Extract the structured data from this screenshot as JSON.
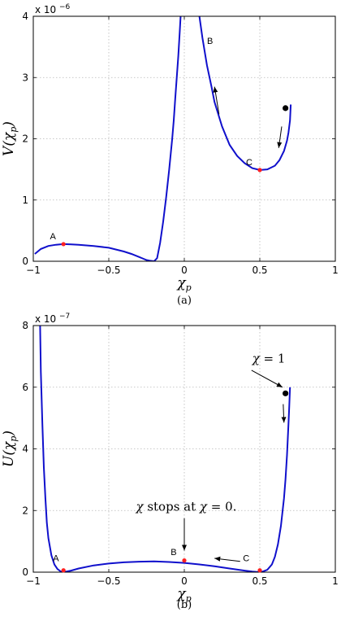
{
  "chart_data": [
    {
      "type": "line",
      "panel": "a",
      "caption": "(a)",
      "xlabel": "χp",
      "ylabel": "V(χp)",
      "exponent_label": "x 10",
      "exponent_power": "−6",
      "xlim": [
        -1,
        1
      ],
      "ylim": [
        0,
        4
      ],
      "xticks": [
        -1,
        -0.5,
        0,
        0.5,
        1
      ],
      "xtick_labels": [
        "−1",
        "−0.5",
        "0",
        "0.5",
        "1"
      ],
      "yticks": [
        0,
        1,
        2,
        3,
        4
      ],
      "ytick_labels": [
        "0",
        "1",
        "2",
        "3",
        "4"
      ],
      "grid": true,
      "line_color": "#1010cc",
      "series": [
        {
          "segment": "left",
          "x": [
            -0.99,
            -0.95,
            -0.9,
            -0.85,
            -0.8,
            -0.75,
            -0.7,
            -0.6,
            -0.5,
            -0.4,
            -0.35,
            -0.3,
            -0.27,
            -0.25,
            -0.23,
            -0.2,
            -0.18,
            -0.16,
            -0.14,
            -0.12,
            -0.1,
            -0.08,
            -0.07,
            -0.06,
            -0.05,
            -0.04,
            -0.03,
            -0.02,
            -0.01
          ],
          "y": [
            0.12,
            0.2,
            0.25,
            0.27,
            0.28,
            0.275,
            0.27,
            0.25,
            0.22,
            0.16,
            0.12,
            0.07,
            0.04,
            0.02,
            0.01,
            0.0,
            0.05,
            0.3,
            0.65,
            1.05,
            1.5,
            2.0,
            2.3,
            2.65,
            3.0,
            3.35,
            3.75,
            4.2,
            4.7
          ]
        },
        {
          "segment": "right",
          "x": [
            0.1,
            0.12,
            0.15,
            0.18,
            0.2,
            0.25,
            0.3,
            0.35,
            0.4,
            0.45,
            0.5,
            0.55,
            0.6,
            0.63,
            0.66,
            0.68,
            0.69,
            0.7,
            0.705
          ],
          "y": [
            4.0,
            3.65,
            3.2,
            2.85,
            2.6,
            2.2,
            1.9,
            1.72,
            1.6,
            1.52,
            1.49,
            1.5,
            1.56,
            1.65,
            1.8,
            1.97,
            2.1,
            2.3,
            2.56
          ]
        }
      ],
      "points": [
        {
          "label": "A",
          "x": -0.8,
          "y": 0.28,
          "color": "#ff2020"
        },
        {
          "label": "C",
          "x": 0.5,
          "y": 1.49,
          "color": "#ff2020"
        },
        {
          "label": "",
          "x": 0.67,
          "y": 2.5,
          "color": "#000000"
        }
      ],
      "labels": [
        {
          "text": "A",
          "x": -0.87,
          "y": 0.36
        },
        {
          "text": "B",
          "x": 0.17,
          "y": 3.55
        },
        {
          "text": "C",
          "x": 0.43,
          "y": 1.57
        }
      ],
      "arrows": [
        {
          "from": [
            0.23,
            2.4
          ],
          "to": [
            0.2,
            2.85
          ]
        },
        {
          "from": [
            0.645,
            2.2
          ],
          "to": [
            0.625,
            1.85
          ]
        }
      ]
    },
    {
      "type": "line",
      "panel": "b",
      "caption": "(b)",
      "xlabel": "χp",
      "ylabel": "U(χp)",
      "exponent_label": "x 10",
      "exponent_power": "−7",
      "xlim": [
        -1,
        1
      ],
      "ylim": [
        0,
        8
      ],
      "xticks": [
        -1,
        -0.5,
        0,
        0.5,
        1
      ],
      "xtick_labels": [
        "−1",
        "−0.5",
        "0",
        "0.5",
        "1"
      ],
      "yticks": [
        0,
        2,
        4,
        6,
        8
      ],
      "ytick_labels": [
        "0",
        "2",
        "4",
        "6",
        "8"
      ],
      "grid": true,
      "line_color": "#1010cc",
      "series": [
        {
          "segment": "main",
          "x": [
            -0.955,
            -0.95,
            -0.94,
            -0.93,
            -0.92,
            -0.91,
            -0.9,
            -0.88,
            -0.86,
            -0.84,
            -0.82,
            -0.8,
            -0.78,
            -0.75,
            -0.7,
            -0.6,
            -0.5,
            -0.4,
            -0.3,
            -0.2,
            -0.1,
            0.0,
            0.1,
            0.2,
            0.3,
            0.4,
            0.45,
            0.5,
            0.52,
            0.55,
            0.58,
            0.6,
            0.62,
            0.64,
            0.66,
            0.67,
            0.68,
            0.69,
            0.695,
            0.7
          ],
          "y": [
            8.0,
            6.5,
            4.8,
            3.4,
            2.4,
            1.6,
            1.1,
            0.55,
            0.25,
            0.1,
            0.03,
            0.0,
            0.02,
            0.05,
            0.12,
            0.22,
            0.28,
            0.32,
            0.34,
            0.35,
            0.33,
            0.3,
            0.25,
            0.19,
            0.12,
            0.05,
            0.02,
            0.0,
            0.02,
            0.08,
            0.25,
            0.5,
            0.9,
            1.5,
            2.4,
            3.0,
            3.8,
            4.8,
            5.4,
            6.0
          ]
        }
      ],
      "points": [
        {
          "label": "A",
          "x": -0.8,
          "y": 0.06,
          "color": "#ff2020"
        },
        {
          "label": "B",
          "x": 0.0,
          "y": 0.38,
          "color": "#ff2020"
        },
        {
          "label": "C",
          "x": 0.5,
          "y": 0.06,
          "color": "#ff2020"
        },
        {
          "label": "",
          "x": 0.67,
          "y": 5.8,
          "color": "#000000"
        }
      ],
      "labels": [
        {
          "text": "A",
          "x": -0.85,
          "y": 0.35
        },
        {
          "text": "B",
          "x": -0.07,
          "y": 0.55
        },
        {
          "text": "C",
          "x": 0.41,
          "y": 0.35
        }
      ],
      "arrows": [
        {
          "from": [
            0.37,
            0.35
          ],
          "to": [
            0.2,
            0.45
          ]
        },
        {
          "from": [
            0.445,
            6.55
          ],
          "to": [
            0.65,
            6.0
          ]
        },
        {
          "from": [
            0.655,
            5.45
          ],
          "to": [
            0.66,
            4.85
          ]
        },
        {
          "from": [
            0.0,
            1.75
          ],
          "to": [
            0.0,
            0.7
          ]
        }
      ],
      "annotations": [
        {
          "parts": [
            "χ",
            " = 1"
          ],
          "x": 0.45,
          "y": 6.8
        },
        {
          "parts": [
            "χ",
            " stops at ",
            "χ",
            " = 0."
          ],
          "x": -0.32,
          "y": 2.0
        }
      ]
    }
  ]
}
